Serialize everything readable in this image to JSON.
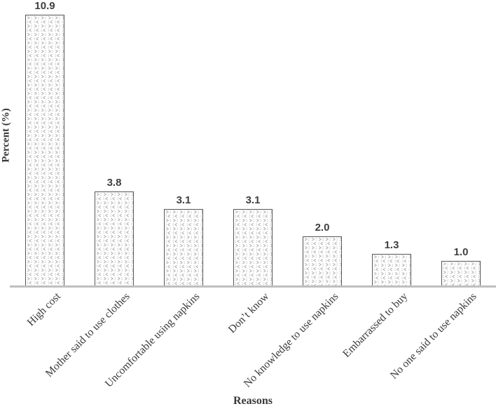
{
  "chart_data": {
    "type": "bar",
    "title": "",
    "xlabel": "Reasons",
    "ylabel": "Percent (%)",
    "categories": [
      "High cost",
      "Mother said to use clothes",
      "Uncomfortable using napkins",
      "Don’t know",
      "No knowledge to use napkins",
      "Embarrassed to buy",
      "No one said to use napkins"
    ],
    "values": [
      10.9,
      3.8,
      3.1,
      3.1,
      2.0,
      1.3,
      1.0
    ],
    "value_labels": [
      "10.9",
      "3.8",
      "3.1",
      "3.1",
      "2.0",
      "1.3",
      "1.0"
    ],
    "ylim": [
      0,
      11.5
    ],
    "grid": "off",
    "legend": "none",
    "bar_fill": "white with light-gray speckle pattern",
    "colors": {
      "bar_border": "#555555",
      "pattern_glyph": "#b2b2b2",
      "axis_line": "#bfbfbf",
      "text": "#3a3a3a",
      "value_text": "#404040"
    }
  }
}
